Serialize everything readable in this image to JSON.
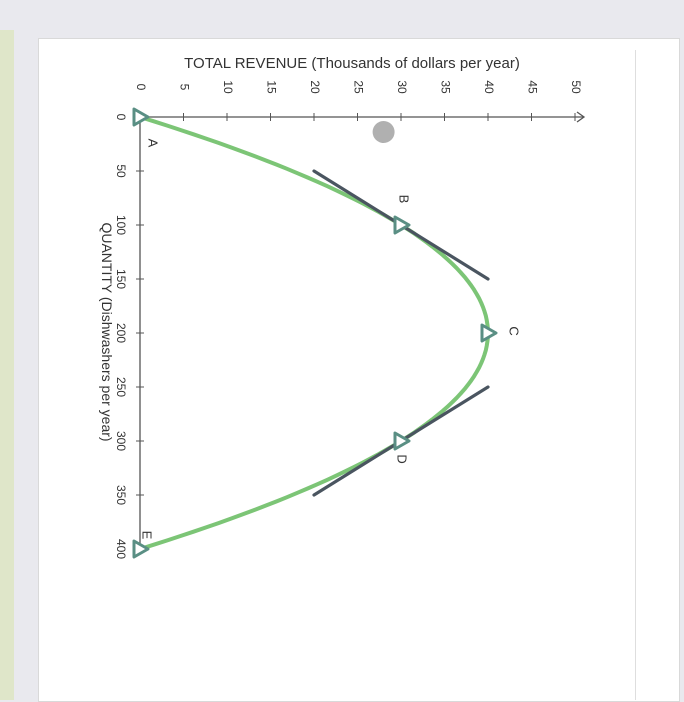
{
  "chart_data": {
    "type": "line",
    "title": "TOTAL REVENUE (Thousands of dollars per year)",
    "xlabel": "QUANTITY (Dishwashers per year)",
    "ylabel": "TOTAL REVENUE (Thousands of dollars per year)",
    "x_ticks": [
      0,
      50,
      100,
      150,
      200,
      250,
      300,
      350,
      400
    ],
    "y_ticks": [
      0,
      5,
      10,
      15,
      20,
      25,
      30,
      35,
      40,
      45,
      50
    ],
    "xlim": [
      0,
      400
    ],
    "ylim": [
      0,
      50
    ],
    "orientation": "rotated 90 degrees clockwise",
    "series": [
      {
        "color": "#7cc576",
        "x": [
          0,
          100,
          200,
          300,
          400
        ],
        "values": [
          0,
          30,
          40,
          30,
          0
        ]
      }
    ],
    "tangent_lines": [
      {
        "color": "#4a5560",
        "x": [
          50,
          150
        ],
        "values": [
          20,
          40
        ]
      },
      {
        "color": "#4a5560",
        "x": [
          250,
          350
        ],
        "values": [
          40,
          20
        ]
      }
    ],
    "points": [
      {
        "label": "A",
        "x": 0,
        "y": 0
      },
      {
        "label": "B",
        "x": 100,
        "y": 30
      },
      {
        "label": "C",
        "x": 200,
        "y": 40
      },
      {
        "label": "D",
        "x": 300,
        "y": 30
      },
      {
        "label": "E",
        "x": 400,
        "y": 0
      }
    ],
    "marker_color": "#5a8f84",
    "extra_marker": {
      "x": 0,
      "y": 28,
      "color": "#b0b0b0"
    }
  }
}
